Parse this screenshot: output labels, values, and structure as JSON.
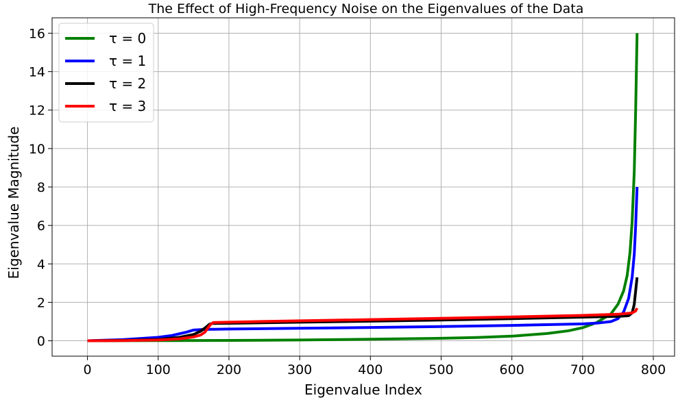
{
  "chart_data": {
    "type": "line",
    "title": "The Effect of High-Frequency Noise on the Eigenvalues of the Data",
    "xlabel": "Eigenvalue Index",
    "ylabel": "Eigenvalue Magnitude",
    "xlim": [
      -50,
      830
    ],
    "ylim": [
      -0.8,
      16.8
    ],
    "xticks": [
      0,
      100,
      200,
      300,
      400,
      500,
      600,
      700,
      800
    ],
    "yticks": [
      0,
      2,
      4,
      6,
      8,
      10,
      12,
      14,
      16
    ],
    "xtick_labels": [
      "0",
      "100",
      "200",
      "300",
      "400",
      "500",
      "600",
      "700",
      "800"
    ],
    "ytick_labels": [
      "0",
      "2",
      "4",
      "6",
      "8",
      "10",
      "12",
      "14",
      "16"
    ],
    "grid": true,
    "legend_position": "top-left",
    "series": [
      {
        "name": "τ = 0",
        "color": "#008000",
        "x": [
          0,
          100,
          200,
          300,
          400,
          500,
          550,
          600,
          650,
          680,
          700,
          720,
          740,
          750,
          758,
          763,
          767,
          770,
          773,
          775,
          777
        ],
        "y": [
          0,
          0.01,
          0.02,
          0.04,
          0.08,
          0.13,
          0.17,
          0.24,
          0.38,
          0.52,
          0.68,
          0.95,
          1.4,
          1.9,
          2.6,
          3.4,
          4.6,
          6.2,
          8.8,
          12.0,
          16.0
        ]
      },
      {
        "name": "τ = 1",
        "color": "#0000ff",
        "x": [
          0,
          50,
          100,
          120,
          140,
          150,
          160,
          175,
          180,
          200,
          300,
          400,
          500,
          600,
          700,
          720,
          740,
          750,
          758,
          765,
          770,
          773,
          775,
          777
        ],
        "y": [
          0,
          0.06,
          0.18,
          0.28,
          0.45,
          0.56,
          0.58,
          0.6,
          0.6,
          0.61,
          0.65,
          0.69,
          0.74,
          0.8,
          0.88,
          0.92,
          1.0,
          1.15,
          1.5,
          2.2,
          3.3,
          4.5,
          6.0,
          8.0
        ]
      },
      {
        "name": "τ = 2",
        "color": "#000000",
        "x": [
          0,
          50,
          100,
          130,
          150,
          160,
          168,
          172,
          176,
          200,
          300,
          400,
          500,
          600,
          700,
          750,
          765,
          770,
          773,
          775,
          777
        ],
        "y": [
          0,
          0.02,
          0.07,
          0.18,
          0.33,
          0.5,
          0.72,
          0.85,
          0.9,
          0.91,
          0.97,
          1.02,
          1.08,
          1.15,
          1.23,
          1.27,
          1.3,
          1.45,
          1.9,
          2.6,
          3.3
        ]
      },
      {
        "name": "τ = 3",
        "color": "#ff0000",
        "x": [
          0,
          50,
          100,
          130,
          150,
          160,
          166,
          170,
          174,
          178,
          200,
          300,
          400,
          500,
          600,
          700,
          750,
          770,
          775,
          777
        ],
        "y": [
          0,
          0.01,
          0.04,
          0.1,
          0.2,
          0.3,
          0.45,
          0.65,
          0.85,
          0.95,
          0.97,
          1.04,
          1.1,
          1.17,
          1.24,
          1.32,
          1.38,
          1.45,
          1.55,
          1.7
        ]
      }
    ]
  }
}
